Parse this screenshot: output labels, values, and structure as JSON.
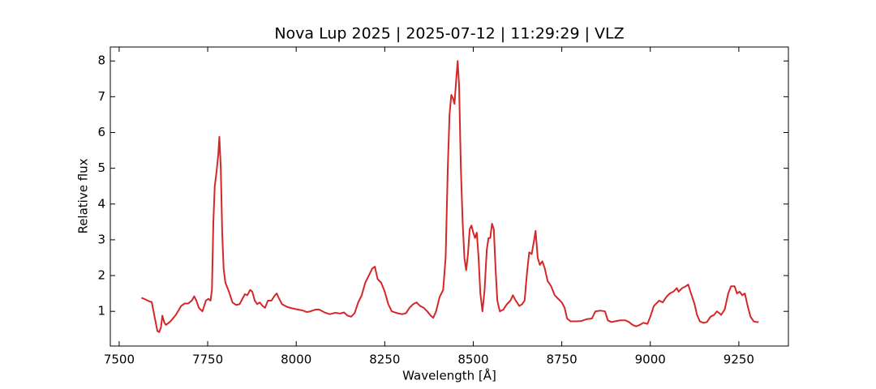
{
  "chart_data": {
    "type": "line",
    "title": "Nova Lup 2025 | 2025-07-12 | 11:29:29 | VLZ",
    "x_label": "Wavelength [Å]",
    "y_label": "Relative flux",
    "color": "#d62728",
    "x": [
      7563,
      7575,
      7585,
      7592,
      7600,
      7608,
      7613,
      7618,
      7622,
      7627,
      7632,
      7645,
      7660,
      7675,
      7685,
      7695,
      7705,
      7712,
      7718,
      7725,
      7735,
      7745,
      7752,
      7758,
      7762,
      7766,
      7770,
      7775,
      7780,
      7783,
      7787,
      7791,
      7795,
      7800,
      7810,
      7820,
      7830,
      7840,
      7848,
      7855,
      7862,
      7870,
      7876,
      7883,
      7890,
      7897,
      7905,
      7912,
      7920,
      7930,
      7940,
      7945,
      7952,
      7960,
      7975,
      7990,
      8005,
      8020,
      8030,
      8040,
      8055,
      8065,
      8080,
      8095,
      8110,
      8125,
      8135,
      8145,
      8155,
      8165,
      8175,
      8185,
      8195,
      8205,
      8215,
      8222,
      8230,
      8240,
      8250,
      8260,
      8270,
      8285,
      8300,
      8310,
      8320,
      8330,
      8340,
      8350,
      8360,
      8370,
      8380,
      8387,
      8395,
      8405,
      8415,
      8422,
      8428,
      8433,
      8438,
      8443,
      8447,
      8452,
      8456,
      8460,
      8465,
      8470,
      8475,
      8480,
      8485,
      8490,
      8495,
      8500,
      8505,
      8510,
      8515,
      8520,
      8526,
      8532,
      8538,
      8543,
      8548,
      8553,
      8558,
      8563,
      8568,
      8575,
      8585,
      8595,
      8605,
      8612,
      8620,
      8630,
      8638,
      8645,
      8652,
      8658,
      8665,
      8672,
      8676,
      8682,
      8688,
      8695,
      8702,
      8710,
      8720,
      8730,
      8740,
      8750,
      8758,
      8765,
      8775,
      8790,
      8805,
      8820,
      8835,
      8845,
      8860,
      8872,
      8880,
      8890,
      8900,
      8915,
      8930,
      8940,
      8950,
      8960,
      8970,
      8980,
      8992,
      9000,
      9010,
      9025,
      9035,
      9045,
      9055,
      9065,
      9075,
      9080,
      9090,
      9100,
      9107,
      9115,
      9125,
      9132,
      9140,
      9150,
      9160,
      9170,
      9180,
      9188,
      9195,
      9200,
      9210,
      9220,
      9228,
      9238,
      9245,
      9252,
      9260,
      9267,
      9275,
      9283,
      9292,
      9300,
      9306
    ],
    "values": [
      1.38,
      1.33,
      1.28,
      1.26,
      0.85,
      0.45,
      0.42,
      0.55,
      0.88,
      0.7,
      0.62,
      0.72,
      0.9,
      1.15,
      1.22,
      1.22,
      1.3,
      1.42,
      1.3,
      1.1,
      1.0,
      1.3,
      1.35,
      1.3,
      1.6,
      3.5,
      4.5,
      4.9,
      5.4,
      5.88,
      5.0,
      3.2,
      2.2,
      1.8,
      1.55,
      1.25,
      1.18,
      1.2,
      1.35,
      1.48,
      1.45,
      1.6,
      1.55,
      1.3,
      1.2,
      1.25,
      1.15,
      1.1,
      1.3,
      1.3,
      1.45,
      1.5,
      1.35,
      1.2,
      1.12,
      1.08,
      1.05,
      1.02,
      0.98,
      1.0,
      1.05,
      1.05,
      0.97,
      0.92,
      0.96,
      0.94,
      0.97,
      0.88,
      0.85,
      0.95,
      1.25,
      1.45,
      1.8,
      2.0,
      2.2,
      2.25,
      1.9,
      1.8,
      1.55,
      1.2,
      1.0,
      0.95,
      0.92,
      0.95,
      1.1,
      1.2,
      1.25,
      1.15,
      1.1,
      1.0,
      0.88,
      0.82,
      1.0,
      1.4,
      1.6,
      2.5,
      5.0,
      6.5,
      7.05,
      6.95,
      6.8,
      7.5,
      8.0,
      7.3,
      5.0,
      3.5,
      2.5,
      2.15,
      2.6,
      3.3,
      3.4,
      3.2,
      3.05,
      3.2,
      2.5,
      1.5,
      1.0,
      1.6,
      2.7,
      3.05,
      3.05,
      3.45,
      3.3,
      2.2,
      1.3,
      1.0,
      1.05,
      1.2,
      1.3,
      1.45,
      1.3,
      1.15,
      1.2,
      1.3,
      2.1,
      2.65,
      2.6,
      3.0,
      3.25,
      2.5,
      2.3,
      2.4,
      2.2,
      1.85,
      1.7,
      1.45,
      1.35,
      1.25,
      1.1,
      0.8,
      0.72,
      0.72,
      0.73,
      0.78,
      0.8,
      1.0,
      1.02,
      1.0,
      0.75,
      0.7,
      0.72,
      0.75,
      0.75,
      0.7,
      0.62,
      0.58,
      0.62,
      0.68,
      0.65,
      0.85,
      1.15,
      1.3,
      1.25,
      1.4,
      1.5,
      1.55,
      1.65,
      1.55,
      1.65,
      1.7,
      1.75,
      1.5,
      1.2,
      0.9,
      0.72,
      0.68,
      0.7,
      0.85,
      0.9,
      1.0,
      0.95,
      0.9,
      1.05,
      1.5,
      1.7,
      1.7,
      1.5,
      1.55,
      1.45,
      1.5,
      1.15,
      0.85,
      0.72,
      0.7,
      0.7
    ],
    "xlim": [
      7475,
      9390
    ],
    "ylim": [
      0.03,
      8.39
    ],
    "xticks": [
      7500,
      7750,
      8000,
      8250,
      8500,
      8750,
      9000,
      9250
    ],
    "yticks": [
      1,
      2,
      3,
      4,
      5,
      6,
      7,
      8
    ]
  }
}
